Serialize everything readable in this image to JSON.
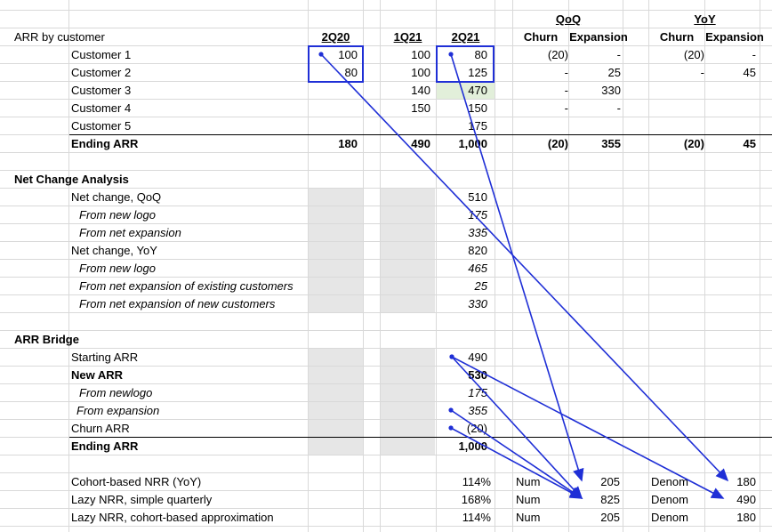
{
  "colors": {
    "arrow": "#1f2fd6",
    "grid": "#d9d9d9",
    "shade": "#e6e6e6",
    "highlight": "#e2efda"
  },
  "headers": {
    "qoq": "QoQ",
    "yoy": "YoY",
    "section": "ARR by customer",
    "p1": "2Q20",
    "p2": "1Q21",
    "p3": "2Q21",
    "churn": "Churn",
    "expansion": "Expansion"
  },
  "customers": [
    {
      "name": "Customer 1",
      "q220": "100",
      "q121": "100",
      "q221": "80",
      "qoq_churn": "(20)",
      "qoq_exp": "-",
      "yoy_churn": "(20)",
      "yoy_exp": "-"
    },
    {
      "name": "Customer 2",
      "q220": "80",
      "q121": "100",
      "q221": "125",
      "qoq_churn": "-",
      "qoq_exp": "25",
      "yoy_churn": "-",
      "yoy_exp": "45"
    },
    {
      "name": "Customer 3",
      "q220": "",
      "q121": "140",
      "q221": "470",
      "qoq_churn": "-",
      "qoq_exp": "330",
      "yoy_churn": "",
      "yoy_exp": ""
    },
    {
      "name": "Customer 4",
      "q220": "",
      "q121": "150",
      "q221": "150",
      "qoq_churn": "-",
      "qoq_exp": "-",
      "yoy_churn": "",
      "yoy_exp": ""
    },
    {
      "name": "Customer 5",
      "q220": "",
      "q121": "",
      "q221": "175",
      "qoq_churn": "",
      "qoq_exp": "",
      "yoy_churn": "",
      "yoy_exp": ""
    }
  ],
  "ending": {
    "label": "Ending ARR",
    "q220": "180",
    "q121": "490",
    "q221": "1,000",
    "qoq_churn": "(20)",
    "qoq_exp": "355",
    "yoy_churn": "(20)",
    "yoy_exp": "45"
  },
  "net_change": {
    "title": "Net Change Analysis",
    "rows": [
      {
        "label": "Net change, QoQ",
        "value": "510",
        "style": "plain"
      },
      {
        "label": "From new logo",
        "value": "175",
        "style": "italic"
      },
      {
        "label": "From net expansion",
        "value": "335",
        "style": "italic"
      },
      {
        "label": "Net change, YoY",
        "value": "820",
        "style": "plain"
      },
      {
        "label": "From new logo",
        "value": "465",
        "style": "italic"
      },
      {
        "label": "From net expansion of existing customers",
        "value": "25",
        "style": "italic"
      },
      {
        "label": "From net expansion of new customers",
        "value": "330",
        "style": "italic"
      }
    ]
  },
  "bridge": {
    "title": "ARR Bridge",
    "rows": [
      {
        "label": "Starting ARR",
        "value": "490",
        "style": "plain"
      },
      {
        "label": "New ARR",
        "value": "530",
        "style": "bold"
      },
      {
        "label": "From newlogo",
        "value": "175",
        "style": "italic"
      },
      {
        "label": "From expansion",
        "value": "355",
        "style": "italic"
      },
      {
        "label": "Churn ARR",
        "value": "(20)",
        "style": "plain"
      },
      {
        "label": "Ending ARR",
        "value": "1,000",
        "style": "bold"
      }
    ]
  },
  "nrr": [
    {
      "label": "Cohort-based NRR (YoY)",
      "pct": "114%",
      "num_label": "Num",
      "num": "205",
      "den_label": "Denom",
      "den": "180"
    },
    {
      "label": "Lazy NRR, simple quarterly",
      "pct": "168%",
      "num_label": "Num",
      "num": "825",
      "den_label": "Denom",
      "den": "490"
    },
    {
      "label": "Lazy NRR, cohort-based approximation",
      "pct": "114%",
      "num_label": "Num",
      "num": "205",
      "den_label": "Denom",
      "den": "180"
    }
  ]
}
